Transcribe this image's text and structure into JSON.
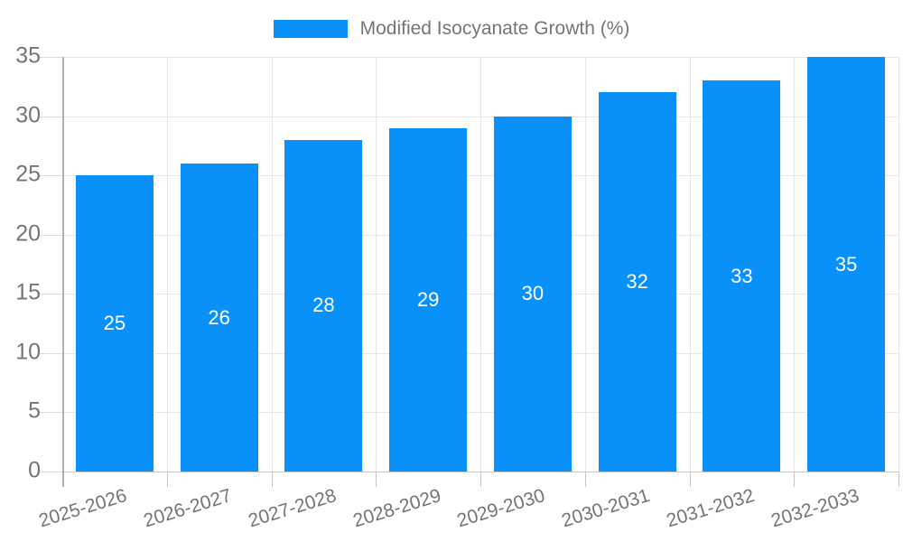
{
  "chart_data": {
    "type": "bar",
    "title": "",
    "categories": [
      "2025-2026",
      "2026-2027",
      "2027-2028",
      "2028-2029",
      "2029-2030",
      "2030-2031",
      "2031-2032",
      "2032-2033"
    ],
    "values": [
      25,
      26,
      28,
      29,
      30,
      32,
      33,
      35
    ],
    "series_name": "Modified Isocyanate Growth (%)",
    "xlabel": "",
    "ylabel": "",
    "ylim": [
      0,
      35
    ],
    "yticks": [
      0,
      5,
      10,
      15,
      20,
      25,
      30,
      35
    ],
    "grid": true,
    "legend_position": "top",
    "bar_value_labels": [
      "25",
      "26",
      "28",
      "29",
      "30",
      "32",
      "33",
      "35"
    ]
  },
  "colors": {
    "bar": "#0990f9",
    "axis-text": "#757575",
    "value-label": "#ffffff",
    "gridline": "#e7e7e7",
    "tick": "#d9d9d9",
    "axis-line": "#b0b0b0",
    "baseline": "#c6c6c6",
    "background": "#ffffff"
  }
}
